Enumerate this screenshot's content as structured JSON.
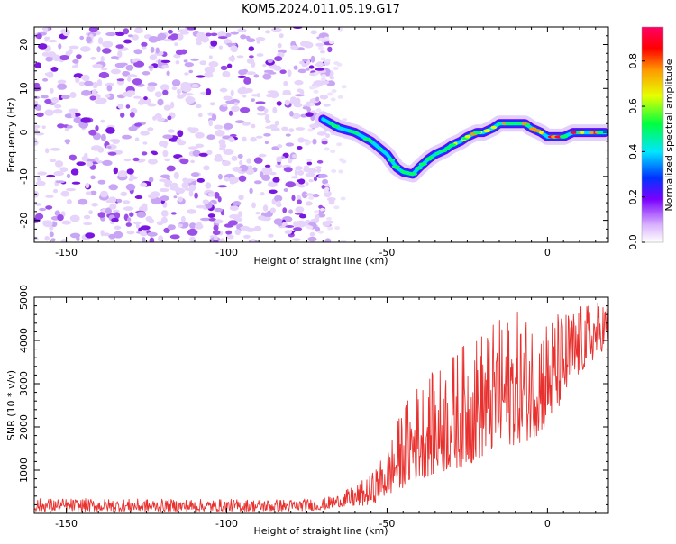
{
  "title": "KOM5.2024.011.05.19.G17",
  "chart_data": [
    {
      "type": "heatmap",
      "xlabel": "Height of straight line (km)",
      "ylabel": "Frequency (Hz)",
      "xlim": [
        -160,
        19
      ],
      "ylim": [
        -25,
        24
      ],
      "xticks": [
        -150,
        -100,
        -50,
        0
      ],
      "yticks": [
        20,
        10,
        0,
        -10,
        -20
      ],
      "noise_region_x": [
        -160,
        -70
      ],
      "ridge": {
        "x": [
          -70,
          -65,
          -60,
          -55,
          -50,
          -47,
          -45,
          -42,
          -40,
          -37,
          -35,
          -32,
          -30,
          -27,
          -25,
          -22,
          -20,
          -17,
          -15,
          -12,
          -10,
          -7,
          -5,
          -2,
          0,
          3,
          5,
          8,
          10,
          13,
          15,
          18
        ],
        "y": [
          3,
          1,
          0,
          -2,
          -5,
          -8,
          -9,
          -9.5,
          -8,
          -6,
          -5,
          -4,
          -3,
          -2,
          -1,
          0,
          0,
          1,
          2,
          2,
          2,
          2,
          1,
          0,
          -1,
          -1,
          -1,
          0,
          0,
          0,
          0,
          0
        ]
      },
      "colorbar": {
        "label": "Normalized spectral amplitude",
        "range": [
          0,
          0.95
        ],
        "ticks": [
          0.0,
          0.2,
          0.4,
          0.6,
          0.8
        ],
        "tick_labels": [
          "0.0",
          "0.2",
          "0.4",
          "0.6",
          "0.8"
        ],
        "colors": [
          "#ffffff",
          "#d9b3ff",
          "#7a00ff",
          "#0033ff",
          "#00e6ff",
          "#00ff40",
          "#e6ff00",
          "#ff9900",
          "#ff0000",
          "#ff0066"
        ]
      }
    },
    {
      "type": "line",
      "xlabel": "Height of straight line (km)",
      "ylabel": "SNR (10 * v/v)",
      "xlim": [
        -160,
        19
      ],
      "ylim": [
        0,
        5000
      ],
      "xticks": [
        -150,
        -100,
        -50,
        0
      ],
      "yticks": [
        1000,
        2000,
        3000,
        4000,
        5000
      ],
      "color": "#e8312e",
      "envelope": {
        "x": [
          -160,
          -120,
          -80,
          -70,
          -65,
          -60,
          -55,
          -50,
          -45,
          -40,
          -35,
          -30,
          -25,
          -20,
          -15,
          -10,
          -5,
          0,
          5,
          10,
          15,
          19
        ],
        "low": [
          50,
          50,
          50,
          80,
          150,
          150,
          200,
          400,
          600,
          800,
          900,
          1000,
          1100,
          1300,
          1500,
          1600,
          1700,
          2000,
          2600,
          3200,
          3600,
          3900
        ],
        "high": [
          350,
          330,
          330,
          350,
          450,
          650,
          900,
          1500,
          2500,
          3100,
          3300,
          3700,
          4000,
          4300,
          4500,
          4700,
          4600,
          4600,
          4700,
          4800,
          4900,
          5000
        ]
      }
    }
  ]
}
